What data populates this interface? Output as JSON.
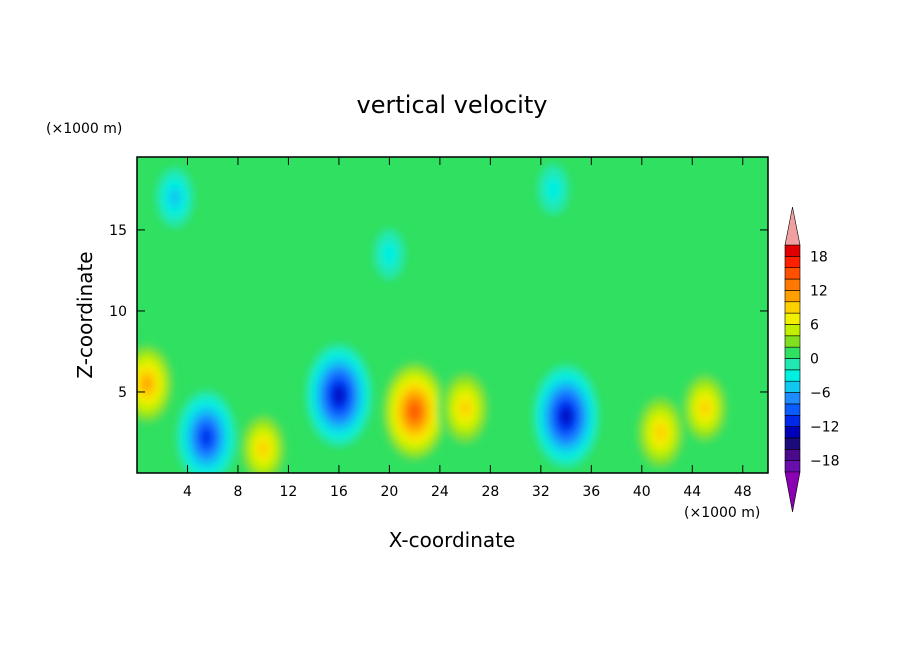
{
  "chart_data": {
    "type": "heatmap",
    "title": "vertical velocity",
    "xlabel": "X-coordinate",
    "ylabel": "Z-coordinate",
    "x_unit": "(×1000 m)",
    "y_unit": "(×1000 m)",
    "xlim": [
      0,
      50
    ],
    "ylim": [
      0,
      19.5
    ],
    "x_ticks": [
      4,
      8,
      12,
      16,
      20,
      24,
      28,
      32,
      36,
      40,
      44,
      48
    ],
    "y_ticks": [
      5,
      10,
      15
    ],
    "field_features": [
      {
        "x": 0.8,
        "z": 5.5,
        "value": 11
      },
      {
        "x": 5.5,
        "z": 2.2,
        "value": -12
      },
      {
        "x": 10.0,
        "z": 1.5,
        "value": 9
      },
      {
        "x": 16.0,
        "z": 4.8,
        "value": -14
      },
      {
        "x": 22.0,
        "z": 3.8,
        "value": 15
      },
      {
        "x": 26.0,
        "z": 4.0,
        "value": 10
      },
      {
        "x": 34.0,
        "z": 3.5,
        "value": -14
      },
      {
        "x": 41.5,
        "z": 2.5,
        "value": 10
      },
      {
        "x": 45.0,
        "z": 4.0,
        "value": 9
      },
      {
        "x": 3.0,
        "z": 17.0,
        "value": -5
      },
      {
        "x": 20.0,
        "z": 13.5,
        "value": -3
      },
      {
        "x": 33.0,
        "z": 17.5,
        "value": -3
      }
    ],
    "colorbar": {
      "tick_labels": [
        "18",
        "12",
        "6",
        "0",
        "−6",
        "−12",
        "−18"
      ],
      "tick_values": [
        18,
        12,
        6,
        0,
        -6,
        -12,
        -18
      ],
      "levels": [
        -20,
        -18,
        -16,
        -14,
        -12,
        -10,
        -8,
        -6,
        -4,
        -2,
        0,
        2,
        4,
        6,
        8,
        10,
        12,
        14,
        16,
        18,
        20
      ],
      "colors": [
        "#6a0dad",
        "#4b0a8c",
        "#1a0a7a",
        "#0000b8",
        "#0028e8",
        "#0a5cff",
        "#1e8cff",
        "#10c8f0",
        "#00f0e0",
        "#20e8b0",
        "#30e060",
        "#80e020",
        "#c0f000",
        "#f0f000",
        "#ffd000",
        "#ffa000",
        "#ff7800",
        "#ff5000",
        "#ff2000",
        "#e00000"
      ],
      "over_color": "#f0a0a0",
      "under_color": "#8c00b4"
    }
  }
}
